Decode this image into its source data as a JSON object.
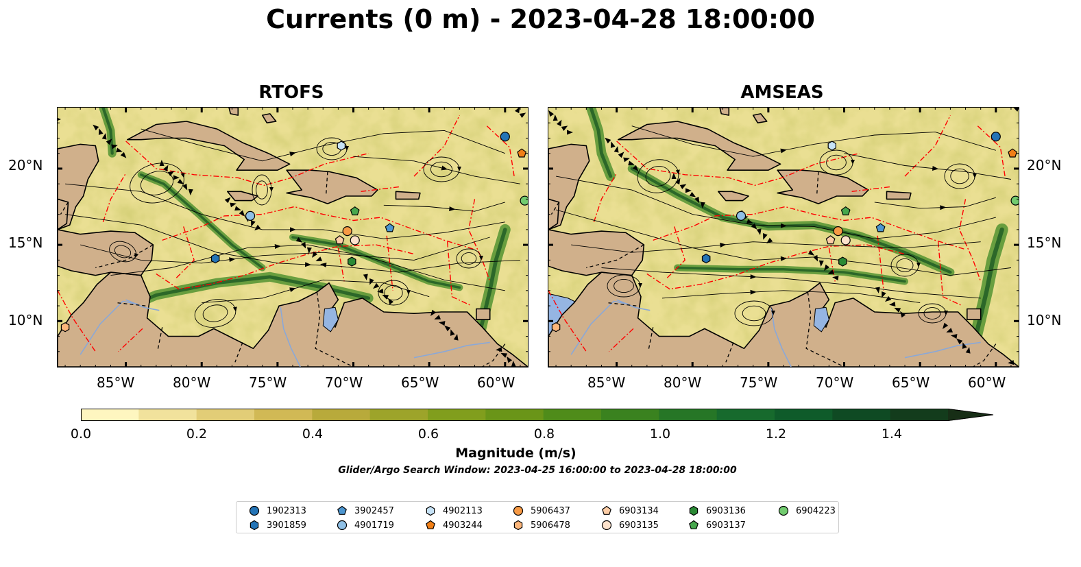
{
  "title": "Currents (0 m) - 2023-04-28 18:00:00",
  "panels": [
    {
      "name": "RTOFS"
    },
    {
      "name": "AMSEAS"
    }
  ],
  "axes": {
    "lon_ticks": [
      "85°W",
      "80°W",
      "75°W",
      "70°W",
      "65°W",
      "60°W"
    ],
    "lat_ticks": [
      "20°N",
      "15°N",
      "10°N"
    ]
  },
  "colorbar": {
    "label": "Magnitude (m/s)",
    "ticks": [
      "0.0",
      "0.2",
      "0.4",
      "0.6",
      "0.8",
      "1.0",
      "1.2",
      "1.4"
    ],
    "range": [
      0,
      1.5
    ],
    "colors": [
      "#fef6c0",
      "#f1e29c",
      "#e2cd77",
      "#d1b955",
      "#b8aa3b",
      "#9da42a",
      "#819e1d",
      "#6a9518",
      "#4f8c1a",
      "#3a821f",
      "#267626",
      "#176a2d",
      "#0f5b2a",
      "#0f4a23",
      "#133c1c",
      "#172e16"
    ]
  },
  "search_window": "Glider/Argo Search Window: 2023-04-25 16:00:00 to 2023-04-28 18:00:00",
  "legend": [
    {
      "id": "1902313",
      "marker": "circle",
      "color": "#2474b6"
    },
    {
      "id": "3901859",
      "marker": "hexagon",
      "color": "#2474b6"
    },
    {
      "id": "3902457",
      "marker": "pentagon",
      "color": "#4d96d0"
    },
    {
      "id": "4901719",
      "marker": "circle",
      "color": "#8fc0e6"
    },
    {
      "id": "4902113",
      "marker": "hexagon",
      "color": "#c6e2f6"
    },
    {
      "id": "4903244",
      "marker": "pentagon",
      "color": "#f07f17"
    },
    {
      "id": "5906437",
      "marker": "circle",
      "color": "#f79a45"
    },
    {
      "id": "5906478",
      "marker": "hexagon",
      "color": "#fbb57a"
    },
    {
      "id": "6903134",
      "marker": "pentagon",
      "color": "#fdcda6"
    },
    {
      "id": "6903135",
      "marker": "circle",
      "color": "#fde2cc"
    },
    {
      "id": "6903136",
      "marker": "hexagon",
      "color": "#2a8a35"
    },
    {
      "id": "6903137",
      "marker": "pentagon",
      "color": "#47a74d"
    },
    {
      "id": "6904223",
      "marker": "circle",
      "color": "#72cb6f"
    }
  ],
  "colors": {
    "land": "#d0b08b",
    "water_outside": "#95b5e2",
    "eez": "#ff0000",
    "streamline": "#000000"
  }
}
